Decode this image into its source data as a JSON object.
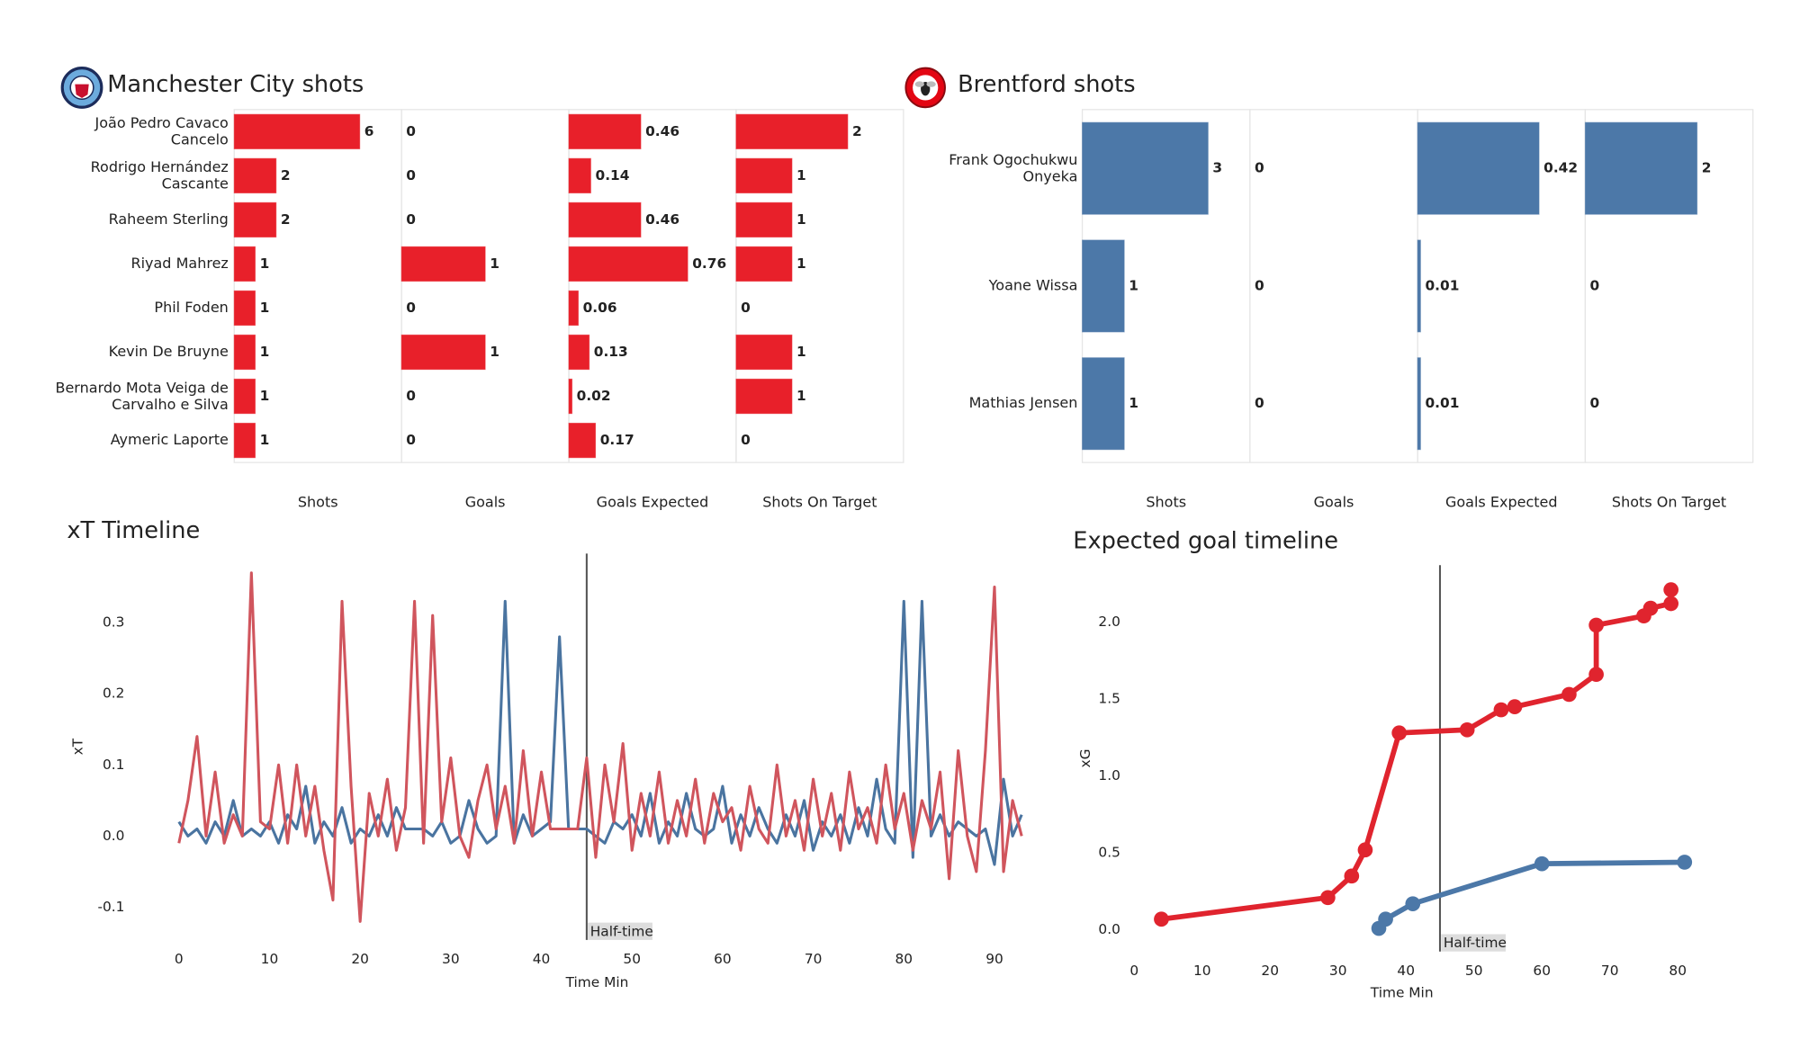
{
  "chart_data": [
    {
      "type": "bar",
      "orientation": "horizontal",
      "title": "Manchester City shots",
      "color": "#e8202a",
      "categories": [
        "João Pedro Cavaco\nCancelo",
        "Rodrigo Hernández\nCascante",
        "Raheem Sterling",
        "Riyad Mahrez",
        "Phil Foden",
        "Kevin De Bruyne",
        "Bernardo Mota Veiga de\nCarvalho e Silva",
        "Aymeric  Laporte"
      ],
      "series": [
        {
          "name": "Shots",
          "xlim": [
            0,
            8
          ],
          "values": [
            6,
            2,
            2,
            1,
            1,
            1,
            1,
            1
          ]
        },
        {
          "name": "Goals",
          "xlim": [
            0,
            2
          ],
          "values": [
            0,
            0,
            0,
            1,
            0,
            1,
            0,
            0
          ]
        },
        {
          "name": "Goals Expected",
          "xlim": [
            0,
            1.07
          ],
          "values": [
            0.46,
            0.14,
            0.46,
            0.76,
            0.06,
            0.13,
            0.02,
            0.17
          ]
        },
        {
          "name": "Shots On Target",
          "xlim": [
            0,
            3
          ],
          "values": [
            2,
            1,
            1,
            1,
            0,
            1,
            1,
            0
          ]
        }
      ]
    },
    {
      "type": "bar",
      "orientation": "horizontal",
      "title": "Brentford shots",
      "color": "#4c78a8",
      "categories": [
        "Frank Ogochukwu\nOnyeka",
        "Yoane Wissa",
        "Mathias Jensen"
      ],
      "series": [
        {
          "name": "Shots",
          "xlim": [
            0,
            4
          ],
          "values": [
            3,
            1,
            1
          ]
        },
        {
          "name": "Goals",
          "xlim": [
            0,
            1
          ],
          "values": [
            0,
            0,
            0
          ]
        },
        {
          "name": "Goals Expected",
          "xlim": [
            0,
            0.58
          ],
          "values": [
            0.42,
            0.01,
            0.01
          ]
        },
        {
          "name": "Shots On Target",
          "xlim": [
            0,
            3
          ],
          "values": [
            2,
            0,
            0
          ]
        }
      ]
    },
    {
      "type": "line",
      "title": "xT Timeline",
      "xlabel": "Time Min",
      "ylabel": "xT",
      "xlim": [
        -5.1,
        97.4
      ],
      "ylim": [
        -0.146,
        0.397
      ],
      "xticks": [
        0,
        10,
        20,
        30,
        40,
        50,
        60,
        70,
        80,
        90
      ],
      "yticks": [
        -0.1,
        {
          "value": 0,
          "label": "0.0"
        },
        0.1,
        0.2,
        0.3
      ],
      "annotation": {
        "x": 45,
        "label": "Half-time"
      },
      "x": [
        0,
        1,
        2,
        3,
        4,
        5,
        6,
        7,
        8,
        9,
        10,
        11,
        12,
        13,
        14,
        15,
        16,
        17,
        18,
        19,
        20,
        21,
        22,
        23,
        24,
        25,
        26,
        27,
        28,
        29,
        30,
        31,
        32,
        33,
        34,
        35,
        36,
        37,
        38,
        39,
        40,
        41,
        42,
        43,
        44,
        45,
        46,
        47,
        48,
        49,
        50,
        51,
        52,
        53,
        54,
        55,
        56,
        57,
        58,
        59,
        60,
        61,
        62,
        63,
        64,
        65,
        66,
        67,
        68,
        69,
        70,
        71,
        72,
        73,
        74,
        75,
        76,
        77,
        78,
        79,
        80,
        81,
        82,
        83,
        84,
        85,
        86,
        87,
        88,
        89,
        90,
        91,
        92,
        93
      ],
      "series": [
        {
          "color": "#4a74a0",
          "values": [
            0.02,
            0.0,
            0.01,
            -0.01,
            0.02,
            0.0,
            0.05,
            0.0,
            0.01,
            0.0,
            0.02,
            -0.01,
            0.03,
            0.01,
            0.07,
            -0.01,
            0.02,
            0.0,
            0.04,
            -0.01,
            0.01,
            0.0,
            0.03,
            0.0,
            0.04,
            0.01,
            0.01,
            0.01,
            0.0,
            0.02,
            -0.01,
            0.0,
            0.05,
            0.01,
            -0.01,
            0.0,
            0.33,
            -0.01,
            0.03,
            0.0,
            0.01,
            0.02,
            0.28,
            0.01,
            0.01,
            0.01,
            0.0,
            -0.01,
            0.02,
            0.01,
            0.03,
            0.0,
            0.06,
            -0.01,
            0.02,
            0.0,
            0.06,
            0.01,
            0.0,
            0.01,
            0.07,
            -0.01,
            0.03,
            0.0,
            0.04,
            0.01,
            -0.01,
            0.03,
            0.0,
            0.05,
            -0.02,
            0.02,
            0.0,
            0.03,
            -0.01,
            0.04,
            0.0,
            0.08,
            0.01,
            -0.01,
            0.33,
            -0.03,
            0.33,
            0.0,
            0.03,
            0.0,
            0.02,
            0.01,
            0.0,
            0.01,
            -0.04,
            0.08,
            0.0,
            0.03
          ]
        },
        {
          "color": "#d0555d",
          "values": [
            -0.01,
            0.05,
            0.14,
            0.0,
            0.09,
            -0.01,
            0.03,
            0.0,
            0.37,
            0.02,
            0.01,
            0.1,
            -0.01,
            0.1,
            0.0,
            0.07,
            -0.02,
            -0.09,
            0.33,
            0.07,
            -0.12,
            0.06,
            0.0,
            0.08,
            -0.02,
            0.04,
            0.33,
            -0.01,
            0.31,
            0.02,
            0.11,
            0.0,
            -0.03,
            0.05,
            0.1,
            0.01,
            0.07,
            -0.01,
            0.12,
            0.0,
            0.09,
            0.01,
            0.01,
            0.01,
            0.01,
            0.11,
            -0.03,
            0.1,
            0.02,
            0.13,
            -0.02,
            0.06,
            0.0,
            0.09,
            -0.01,
            0.05,
            0.0,
            0.08,
            -0.01,
            0.06,
            0.02,
            0.04,
            -0.02,
            0.07,
            0.01,
            -0.01,
            0.1,
            0.0,
            0.05,
            -0.02,
            0.08,
            0.0,
            0.06,
            -0.02,
            0.09,
            0.01,
            0.04,
            -0.01,
            0.1,
            0.01,
            0.06,
            -0.02,
            0.05,
            0.01,
            0.09,
            -0.06,
            0.12,
            0.0,
            -0.05,
            0.12,
            0.35,
            -0.05,
            0.05,
            0.0
          ]
        }
      ]
    },
    {
      "type": "line",
      "title": "Expected goal timeline",
      "xlabel": "Time Min",
      "ylabel": "xG",
      "markers": true,
      "xlim": [
        -5.6,
        84.4
      ],
      "ylim": [
        -0.14,
        2.37
      ],
      "xticks": [
        0,
        10,
        20,
        30,
        40,
        50,
        60,
        70,
        80
      ],
      "yticks": [
        {
          "value": 0,
          "label": "0.0"
        },
        0.5,
        {
          "value": 1,
          "label": "1.0"
        },
        1.5,
        {
          "value": 2,
          "label": "2.0"
        }
      ],
      "annotation": {
        "x": 45,
        "label": "Half-time"
      },
      "series": [
        {
          "color": "#e0242e",
          "x": [
            4,
            28.5,
            32,
            34,
            39,
            49,
            54,
            56,
            64,
            68,
            68,
            75,
            76,
            79,
            79
          ],
          "values": [
            0.07,
            0.21,
            0.35,
            0.52,
            1.28,
            1.3,
            1.43,
            1.45,
            1.53,
            1.66,
            1.98,
            2.04,
            2.09,
            2.12,
            2.21
          ]
        },
        {
          "color": "#4c78a8",
          "x": [
            36,
            37,
            41,
            60,
            81
          ],
          "values": [
            0.01,
            0.07,
            0.17,
            0.43,
            0.44
          ]
        }
      ]
    }
  ]
}
